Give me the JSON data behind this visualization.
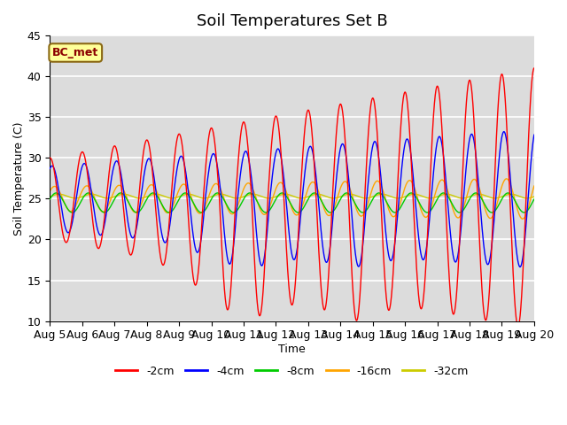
{
  "title": "Soil Temperatures Set B",
  "xlabel": "Time",
  "ylabel": "Soil Temperature (C)",
  "ylim": [
    10,
    45
  ],
  "x_tick_labels": [
    "Aug 5",
    "Aug 6",
    "Aug 7",
    "Aug 8",
    "Aug 9",
    "Aug 10",
    "Aug 11",
    "Aug 12",
    "Aug 13",
    "Aug 14",
    "Aug 15",
    "Aug 16",
    "Aug 17",
    "Aug 18",
    "Aug 19",
    "Aug 20"
  ],
  "annotation_text": "BC_met",
  "annotation_color": "#8B0000",
  "annotation_bg": "#FFFF99",
  "annotation_edge": "#8B6914",
  "colors": {
    "-2cm": "#FF0000",
    "-4cm": "#0000FF",
    "-8cm": "#00CC00",
    "-16cm": "#FFA500",
    "-32cm": "#CCCC00"
  },
  "legend_labels": [
    "-2cm",
    "-4cm",
    "-8cm",
    "-16cm",
    "-32cm"
  ],
  "background_color": "#DCDCDC",
  "grid_color": "#FFFFFF",
  "title_fontsize": 13,
  "mean_2": 25.0,
  "mean_4": 25.0,
  "mean_8": 24.5,
  "mean_16": 25.0,
  "mean_32": 25.3
}
